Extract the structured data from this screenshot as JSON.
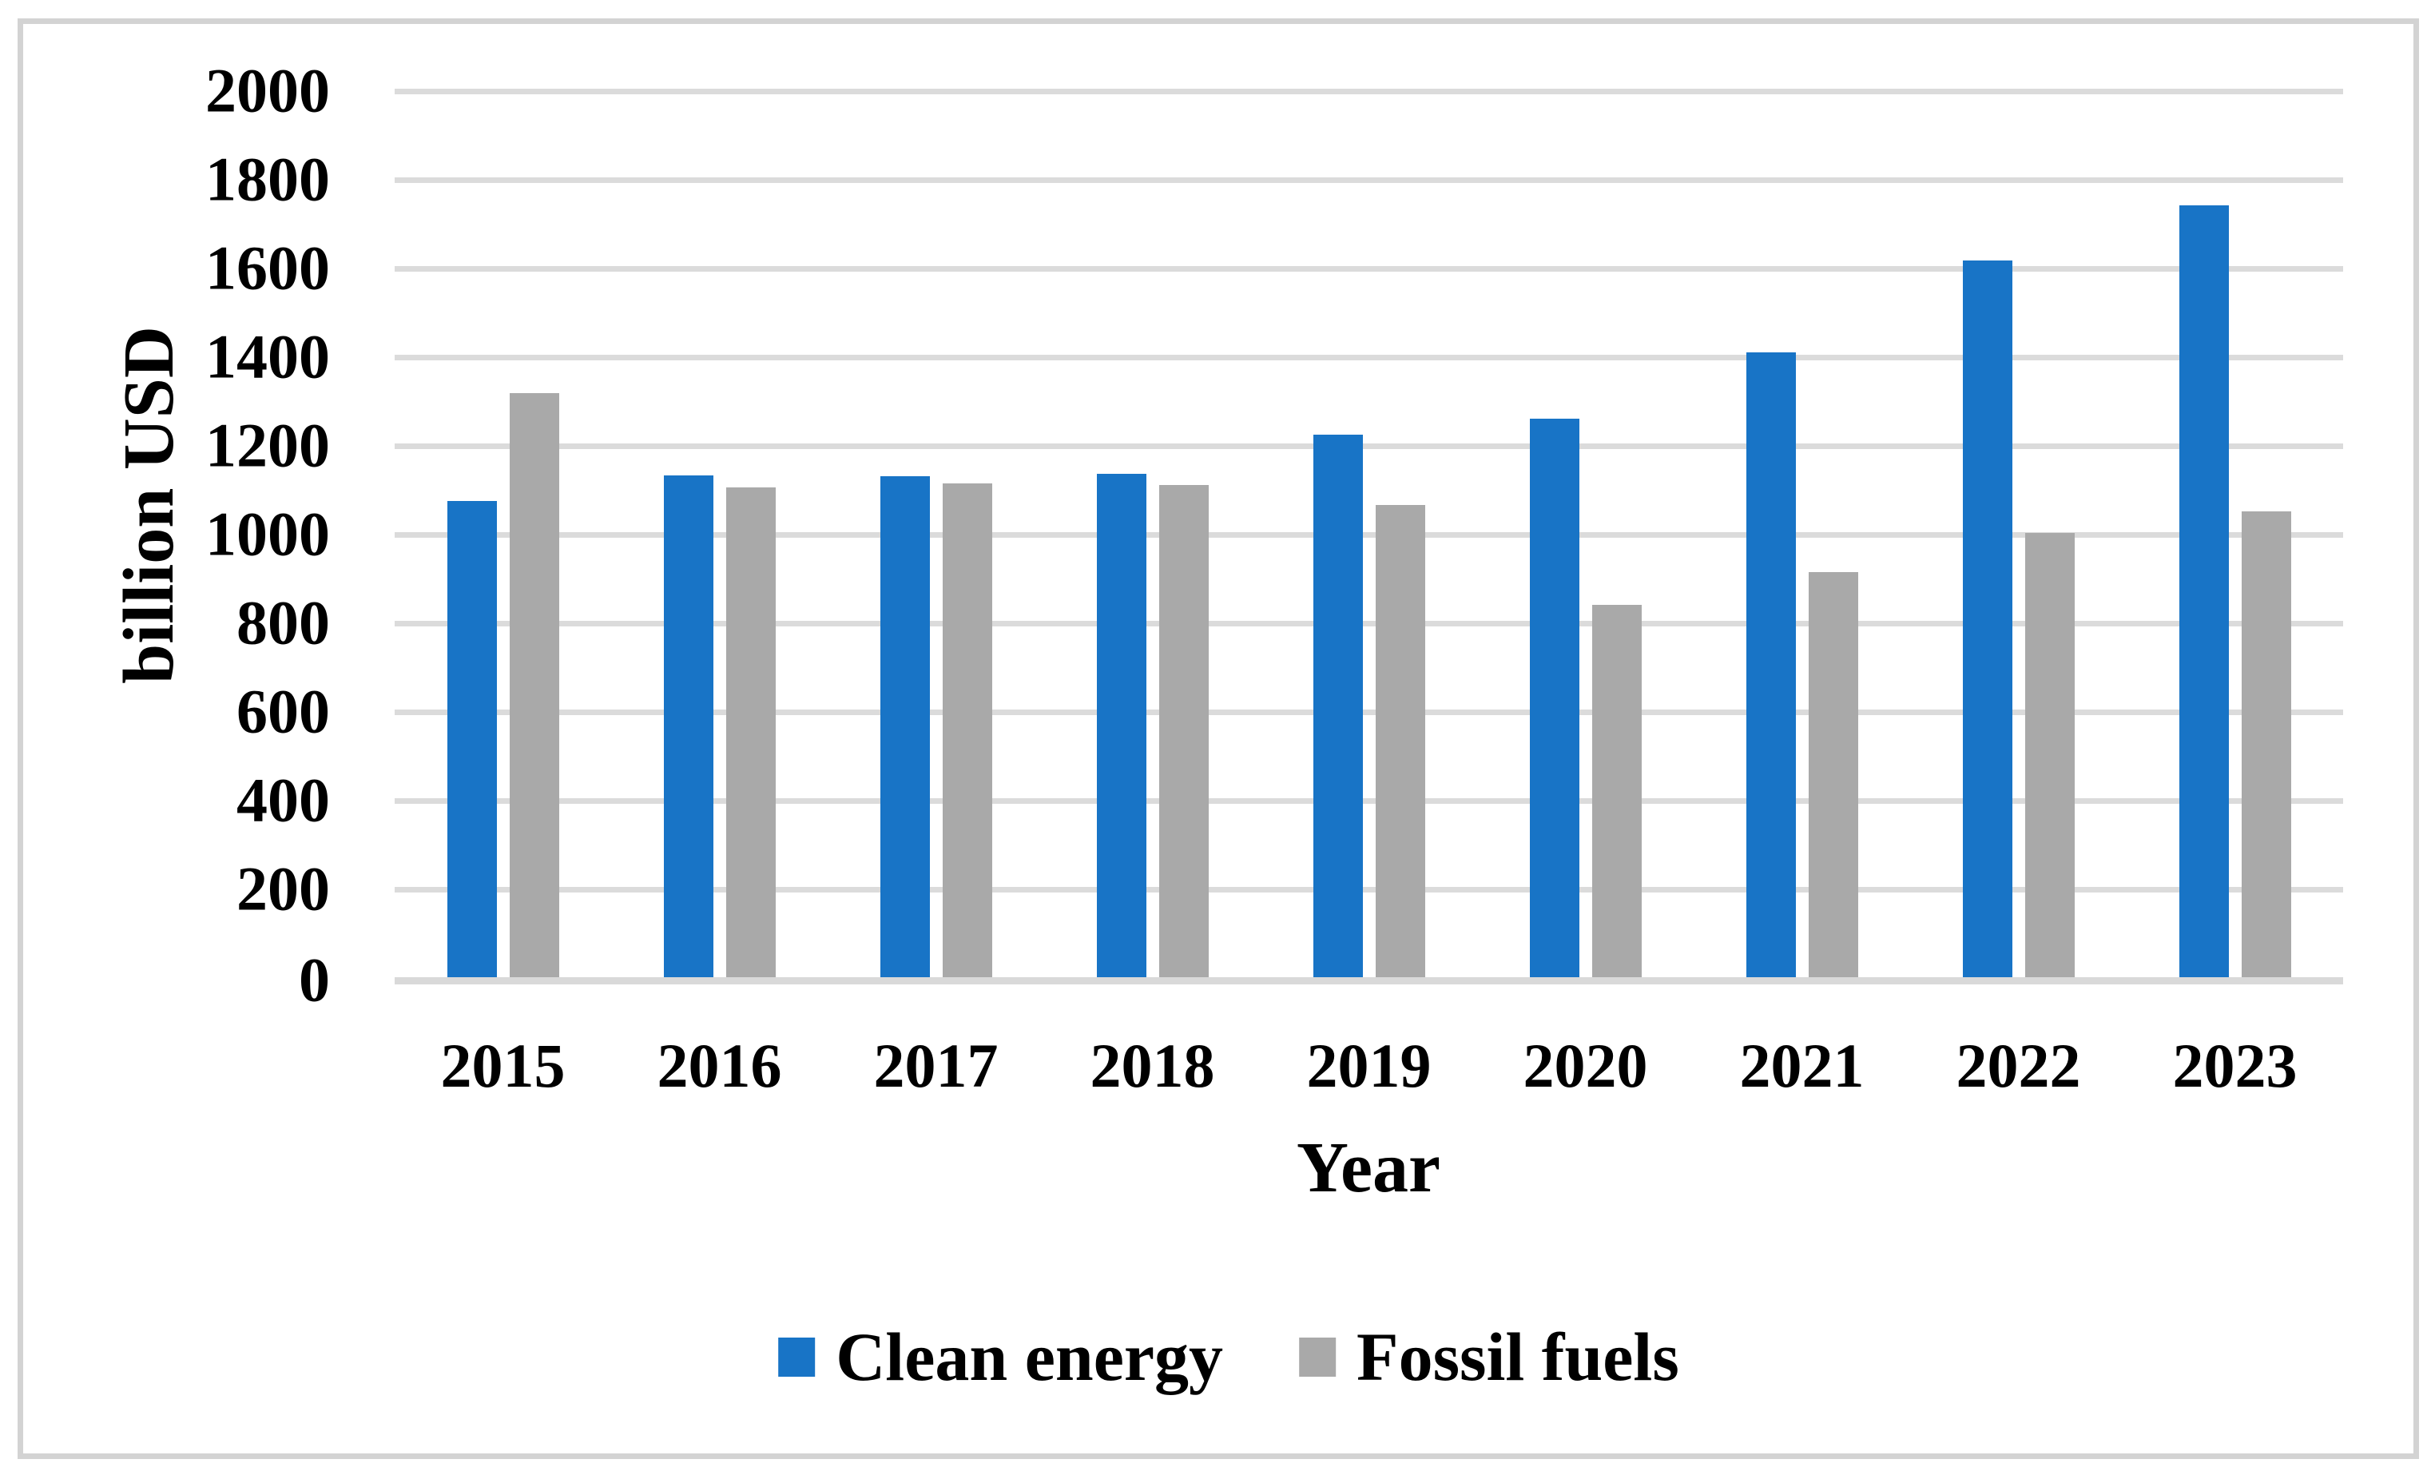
{
  "chart_data": {
    "type": "bar",
    "title": "",
    "categories": [
      "2015",
      "2016",
      "2017",
      "2018",
      "2019",
      "2020",
      "2021",
      "2022",
      "2023"
    ],
    "series": [
      {
        "name": "Clean energy",
        "color": "#1874C6",
        "values": [
          1073,
          1131,
          1130,
          1136,
          1224,
          1259,
          1409,
          1617,
          1741
        ]
      },
      {
        "name": "Fossil fuels",
        "color": "#A9A9A9",
        "values": [
          1318,
          1104,
          1113,
          1110,
          1065,
          840,
          914,
          1002,
          1050
        ]
      }
    ],
    "xlabel": "Year",
    "ylabel": "billion USD",
    "ylim": [
      0,
      2000
    ],
    "ytick_step": 200,
    "yticks": [
      0,
      200,
      400,
      600,
      800,
      1000,
      1200,
      1400,
      1600,
      1800,
      2000
    ],
    "grid": true,
    "legend_position": "bottom-center",
    "gridline_color": "#DBDBDB",
    "axis_line_color": "#D9D9D9",
    "figure_border_color": "#D3D3D3"
  }
}
